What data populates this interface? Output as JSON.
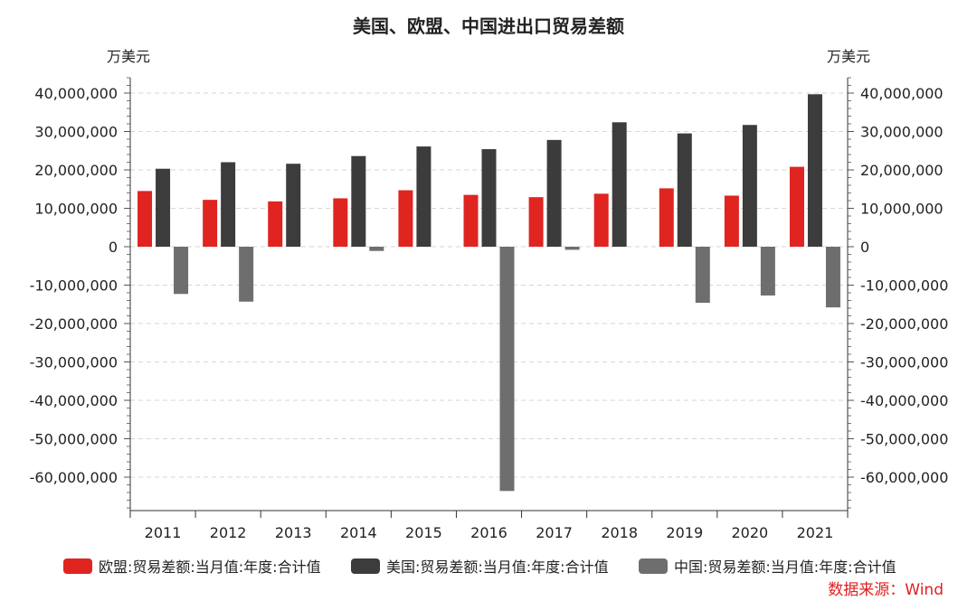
{
  "chart_data": {
    "type": "bar",
    "title": "美国、欧盟、中国进出口贸易差额",
    "ylabel_left": "万美元",
    "ylabel_right": "万美元",
    "ylim": [
      -70000000,
      45000000
    ],
    "yticks": [
      40000000,
      30000000,
      20000000,
      10000000,
      0,
      -10000000,
      -20000000,
      -30000000,
      -40000000,
      -50000000,
      -60000000
    ],
    "ytick_labels": [
      "40,000,000",
      "30,000,000",
      "20,000,000",
      "10,000,000",
      "0",
      "-10,000,000",
      "-20,000,000",
      "-30,000,000",
      "-40,000,000",
      "-50,000,000",
      "-60,000,000"
    ],
    "grid": true,
    "legend_position": "bottom",
    "categories": [
      "2011",
      "2012",
      "2013",
      "2014",
      "2015",
      "2016",
      "2017",
      "2018",
      "2019",
      "2020",
      "2021"
    ],
    "series": [
      {
        "name": "欧盟:贸易差额:当月值:年度:合计值",
        "color": "#e02420",
        "values": [
          14500000,
          12200000,
          11800000,
          12600000,
          14700000,
          13500000,
          12900000,
          13800000,
          15200000,
          13300000,
          20800000
        ]
      },
      {
        "name": "美国:贸易差额:当月值:年度:合计值",
        "color": "#3c3c3c",
        "values": [
          20300000,
          22000000,
          21600000,
          23600000,
          26100000,
          25400000,
          27800000,
          32400000,
          29500000,
          31700000,
          39700000
        ]
      },
      {
        "name": "中国:贸易差额:当月值:年度:合计值",
        "color": "#6e6e6e",
        "values": [
          -12300000,
          -14300000,
          0,
          -1100000,
          0,
          -63600000,
          -800000,
          0,
          -14600000,
          -12700000,
          -15800000
        ]
      }
    ],
    "source": "数据来源：Wind"
  }
}
